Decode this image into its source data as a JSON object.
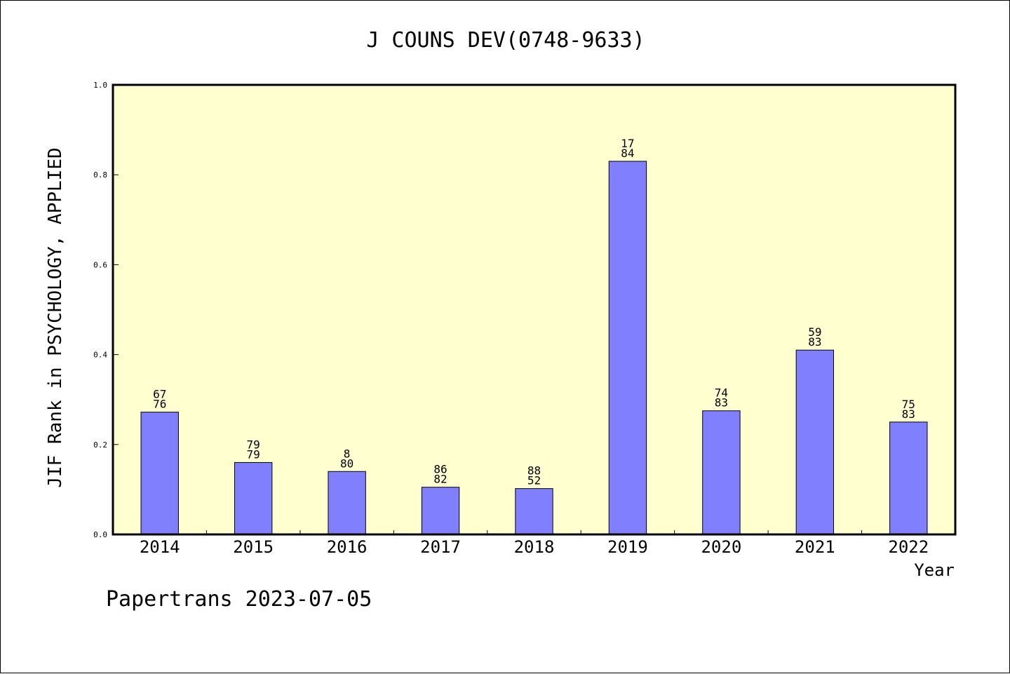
{
  "chart_data": {
    "type": "bar",
    "title": "J COUNS DEV(0748-9633)",
    "xlabel": "Year",
    "ylabel": "JIF Rank in PSYCHOLOGY, APPLIED",
    "ylim": [
      0,
      1.0
    ],
    "yticks": [
      "0.0",
      "0.2",
      "0.4",
      "0.6",
      "0.8",
      "1.0"
    ],
    "categories": [
      "2014",
      "2015",
      "2016",
      "2017",
      "2018",
      "2019",
      "2020",
      "2021",
      "2022"
    ],
    "values": [
      0.272,
      0.16,
      0.14,
      0.105,
      0.102,
      0.83,
      0.275,
      0.41,
      0.25
    ],
    "bar_labels": [
      [
        "67",
        "76"
      ],
      [
        "79",
        "79"
      ],
      [
        "8",
        "80"
      ],
      [
        "86",
        "82"
      ],
      [
        "88",
        "52"
      ],
      [
        "17",
        "84"
      ],
      [
        "74",
        "83"
      ],
      [
        "59",
        "83"
      ],
      [
        "75",
        "83"
      ]
    ],
    "grid": false,
    "bar_color": "#8080ff",
    "plot_background": "#ffffd0"
  },
  "footer": "Papertrans 2023-07-05"
}
